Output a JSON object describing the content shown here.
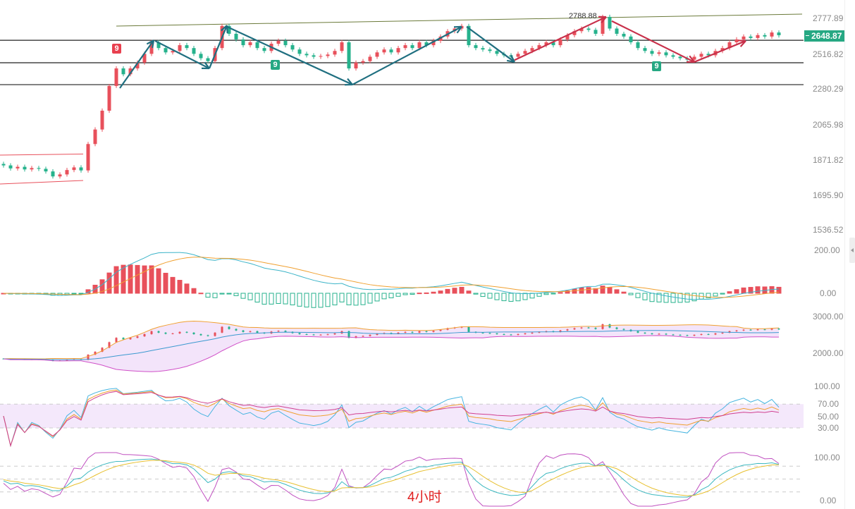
{
  "chart_data": {
    "type": "candlestick",
    "period_label": "4小时",
    "colors": {
      "up": "#e8505b",
      "down": "#26b28c",
      "teal_arrow": "#1f6f80",
      "red_arrow": "#c8304a",
      "badge_green": "#26a883",
      "badge_red": "#e8404f"
    },
    "price_axis": {
      "ticks": [
        "2777.89",
        "2648.87",
        "2516.82",
        "2280.29",
        "2065.98",
        "1871.82",
        "1695.90",
        "1536.52"
      ]
    },
    "last_price": "2648.87",
    "peak_label": "2788.88",
    "closes": [
      1845,
      1830,
      1838,
      1825,
      1832,
      1828,
      1815,
      1790,
      1800,
      1822,
      1835,
      1820,
      1960,
      2040,
      2150,
      2300,
      2420,
      2380,
      2420,
      2460,
      2520,
      2600,
      2560,
      2530,
      2540,
      2580,
      2560,
      2520,
      2490,
      2470,
      2560,
      2720,
      2660,
      2620,
      2580,
      2600,
      2560,
      2540,
      2590,
      2610,
      2580,
      2550,
      2520,
      2510,
      2500,
      2505,
      2515,
      2540,
      2600,
      2420,
      2460,
      2470,
      2500,
      2530,
      2550,
      2530,
      2560,
      2580,
      2560,
      2600,
      2580,
      2610,
      2640,
      2680,
      2700,
      2720,
      2580,
      2560,
      2550,
      2540,
      2520,
      2510,
      2500,
      2520,
      2540,
      2560,
      2580,
      2600,
      2580,
      2620,
      2650,
      2680,
      2700,
      2690,
      2660,
      2789,
      2700,
      2660,
      2640,
      2600,
      2560,
      2540,
      2520,
      2530,
      2510,
      2500,
      2490,
      2480,
      2500,
      2520,
      2510,
      2540,
      2560,
      2600,
      2620,
      2640,
      2630,
      2650,
      2640,
      2670,
      2649
    ],
    "horizontal_levels": [
      2614,
      2459,
      2309
    ],
    "trendline": {
      "from": {
        "index": 16,
        "price": 2719
      },
      "to": {
        "index": 113.3,
        "price": 2810
      }
    },
    "channel": {
      "top": [
        {
          "index": -0.5,
          "price": 1899
        },
        {
          "index": 11.3,
          "price": 1905
        }
      ],
      "bottom": [
        {
          "index": -0.5,
          "price": 1752
        },
        {
          "index": 11.3,
          "price": 1770
        }
      ]
    },
    "arrows": [
      {
        "color": "teal",
        "from": [
          16.5,
          2285
        ],
        "to": [
          21.3,
          2614
        ]
      },
      {
        "color": "teal",
        "from": [
          21.5,
          2610
        ],
        "to": [
          29.2,
          2420
        ]
      },
      {
        "color": "teal",
        "from": [
          29.2,
          2420
        ],
        "to": [
          31.7,
          2724
        ]
      },
      {
        "color": "teal",
        "from": [
          31.7,
          2714
        ],
        "to": [
          49.5,
          2309
        ]
      },
      {
        "color": "teal",
        "from": [
          49.5,
          2309
        ],
        "to": [
          65,
          2714
        ]
      },
      {
        "color": "teal",
        "from": [
          65.7,
          2714
        ],
        "to": [
          72.5,
          2464
        ]
      },
      {
        "color": "red",
        "from": [
          72.5,
          2477
        ],
        "to": [
          85.5,
          2789
        ]
      },
      {
        "color": "red",
        "from": [
          86.3,
          2757
        ],
        "to": [
          98,
          2464
        ]
      },
      {
        "color": "red",
        "from": [
          98,
          2464
        ],
        "to": [
          105.3,
          2610
        ]
      }
    ],
    "nine_markers": [
      {
        "index": 16,
        "type": "red",
        "text": "9"
      },
      {
        "index": 38.5,
        "type": "green",
        "text": "9"
      },
      {
        "index": 92.6,
        "type": "green",
        "text": "9"
      }
    ],
    "indicators": {
      "macd": {
        "ticks": [
          "200.00",
          "0.00"
        ]
      },
      "boll": {
        "ticks": [
          "3000.00",
          "2000.00"
        ]
      },
      "rsi": {
        "ticks": [
          "100.00",
          "70.00",
          "50.00",
          "30.00"
        ]
      },
      "kdj": {
        "ticks": [
          "100.00",
          "0.00"
        ]
      }
    }
  }
}
